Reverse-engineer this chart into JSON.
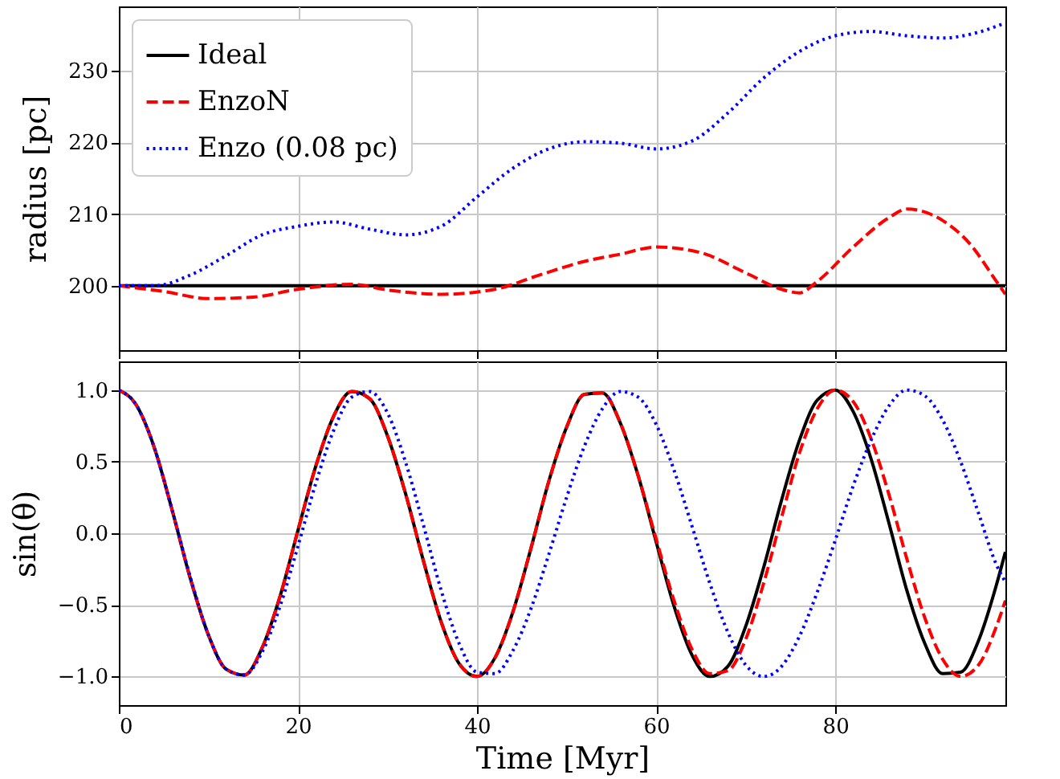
{
  "chart_data": [
    {
      "type": "line",
      "ylabel": "radius [pc]",
      "xlim": [
        0,
        99
      ],
      "xticks": [
        0,
        20,
        40,
        60,
        80
      ],
      "ylim": [
        191,
        239
      ],
      "yticks": [
        200,
        210,
        220,
        230
      ],
      "grid": true,
      "legend": "top left",
      "tick_labels": "y",
      "series": [
        {
          "name": "Ideal",
          "color": "#000000",
          "line_style": "solid",
          "x": [
            0,
            99
          ],
          "values": [
            200,
            200
          ]
        },
        {
          "name": "EnzoN",
          "color": "#ff0000",
          "line_style": "dashed",
          "x": [
            0,
            5,
            10,
            15,
            20,
            26,
            30,
            36,
            42,
            47,
            52,
            56,
            60,
            65,
            70,
            74,
            76,
            78,
            82,
            86,
            88,
            92,
            95,
            98,
            99
          ],
          "values": [
            200,
            199.2,
            198.2,
            198.4,
            199.5,
            200.2,
            199.4,
            198.8,
            199.5,
            201.5,
            203.4,
            204.4,
            205.4,
            204.6,
            201.8,
            199.5,
            199.0,
            200.6,
            205.4,
            209.5,
            210.7,
            209.1,
            205.9,
            200.6,
            198.8
          ]
        },
        {
          "name": "Enzo (0.08 pc)",
          "color": "#0000ff",
          "line_style": "dotted",
          "x": [
            0,
            4,
            8,
            12,
            16,
            20,
            24,
            28,
            32,
            36,
            40,
            44,
            48,
            52,
            56,
            60,
            64,
            68,
            72,
            76,
            80,
            84,
            88,
            92,
            96,
            99
          ],
          "values": [
            200,
            200,
            201.5,
            204.2,
            207.1,
            208.3,
            208.9,
            207.9,
            207.1,
            208.3,
            212.4,
            216.4,
            219.1,
            220.1,
            219.9,
            219.1,
            220.2,
            224.1,
            229.0,
            232.7,
            234.9,
            235.5,
            234.9,
            234.6,
            235.4,
            236.7
          ]
        }
      ]
    },
    {
      "type": "line",
      "xlabel": "Time [Myr]",
      "ylabel": "sin(θ)",
      "xlim": [
        0,
        99
      ],
      "xticks": [
        0,
        20,
        40,
        60,
        80
      ],
      "ylim": [
        -1.2,
        1.2
      ],
      "yticks": [
        {
          "value": -1,
          "label": "−1.0"
        },
        {
          "value": -0.5,
          "label": "−0.5"
        },
        {
          "value": 0,
          "label": "0.0"
        },
        {
          "value": 0.5,
          "label": "0.5"
        },
        {
          "value": 1,
          "label": "1.0"
        }
      ],
      "grid": true,
      "legend": false,
      "x": [
        0,
        2,
        4,
        6,
        8,
        10,
        12,
        14,
        16,
        18,
        20,
        22,
        24,
        26,
        28,
        30,
        32,
        34,
        36,
        38,
        40,
        42,
        44,
        46,
        48,
        50,
        52,
        54,
        56,
        58,
        60,
        62,
        64,
        66,
        68,
        70,
        72,
        74,
        76,
        78,
        80,
        82,
        84,
        86,
        88,
        90,
        92,
        94,
        96,
        98,
        99
      ],
      "series": [
        {
          "name": "Ideal",
          "color": "#000000",
          "line_style": "solid",
          "values": [
            1,
            0.89,
            0.59,
            0.15,
            -0.32,
            -0.71,
            -0.95,
            -0.99,
            -0.8,
            -0.44,
            0.02,
            0.47,
            0.82,
            0.99,
            0.94,
            0.68,
            0.28,
            -0.19,
            -0.62,
            -0.91,
            -1.0,
            -0.87,
            -0.55,
            -0.11,
            0.36,
            0.74,
            0.97,
            0.98,
            0.77,
            0.4,
            -0.06,
            -0.51,
            -0.85,
            -1.0,
            -0.93,
            -0.65,
            -0.24,
            0.23,
            0.65,
            0.93,
            1.0,
            0.85,
            0.52,
            0.07,
            -0.4,
            -0.77,
            -0.98,
            -0.97,
            -0.75,
            -0.36,
            -0.13
          ]
        },
        {
          "name": "EnzoN",
          "color": "#ff0000",
          "line_style": "dashed",
          "values": [
            1,
            0.89,
            0.59,
            0.15,
            -0.32,
            -0.71,
            -0.95,
            -0.99,
            -0.8,
            -0.44,
            0.02,
            0.47,
            0.82,
            0.99,
            0.94,
            0.68,
            0.28,
            -0.19,
            -0.62,
            -0.91,
            -1.0,
            -0.87,
            -0.55,
            -0.11,
            0.36,
            0.74,
            0.97,
            0.98,
            0.77,
            0.4,
            -0.04,
            -0.47,
            -0.81,
            -0.98,
            -0.96,
            -0.74,
            -0.35,
            0.11,
            0.56,
            0.87,
            1.0,
            0.92,
            0.66,
            0.27,
            -0.18,
            -0.59,
            -0.88,
            -1.0,
            -0.92,
            -0.65,
            -0.47
          ]
        },
        {
          "name": "Enzo (0.08 pc)",
          "color": "#0000ff",
          "line_style": "dotted",
          "values": [
            1,
            0.89,
            0.59,
            0.15,
            -0.31,
            -0.71,
            -0.95,
            -0.99,
            -0.83,
            -0.51,
            -0.09,
            0.35,
            0.72,
            0.95,
            0.99,
            0.84,
            0.5,
            0.06,
            -0.4,
            -0.77,
            -0.97,
            -0.98,
            -0.82,
            -0.53,
            -0.15,
            0.25,
            0.61,
            0.87,
            0.99,
            0.95,
            0.76,
            0.44,
            0.05,
            -0.35,
            -0.69,
            -0.92,
            -1.0,
            -0.93,
            -0.72,
            -0.41,
            -0.05,
            0.33,
            0.65,
            0.89,
            1.0,
            0.96,
            0.79,
            0.5,
            0.14,
            -0.22,
            -0.34
          ]
        }
      ]
    }
  ]
}
